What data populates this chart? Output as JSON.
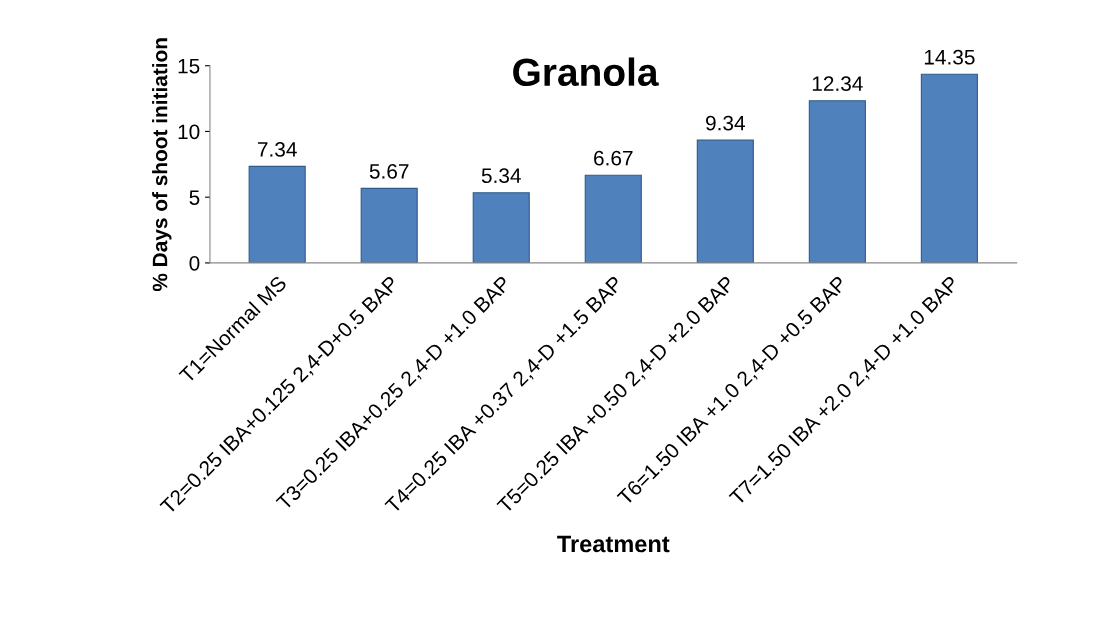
{
  "chart_data": {
    "type": "bar",
    "title": "Granola",
    "xlabel": "Treatment",
    "ylabel": "% Days of shoot initiation",
    "categories": [
      "T1=Normal MS",
      "T2=0.25 IBA+0.125 2,4-D+0.5 BAP",
      "T3=0.25 IBA+0.25 2,4-D +1.0 BAP",
      "T4=0.25 IBA +0.37 2,4-D +1.5 BAP",
      "T5=0.25 IBA +0.50 2,4-D +2.0 BAP",
      "T6=1.50 IBA +1.0 2,4-D +0.5 BAP",
      "T7=1.50 IBA +2.0 2,4-D +1.0 BAP"
    ],
    "values": [
      7.34,
      5.67,
      5.34,
      6.67,
      9.34,
      12.34,
      14.35
    ],
    "color": "#4f81bd",
    "ylim": [
      0,
      15
    ],
    "yticks": [
      0,
      5,
      10,
      15
    ],
    "grid": false,
    "data_labels": true
  }
}
